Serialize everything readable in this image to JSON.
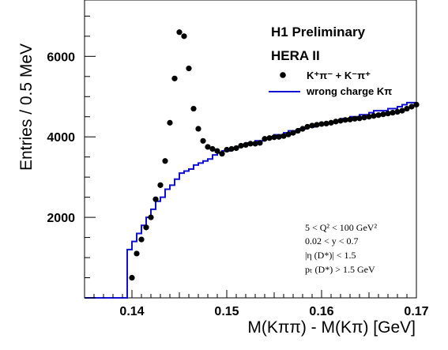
{
  "chart_data": {
    "type": "scatter",
    "title": "",
    "xlabel": "M(Kππ) - M(Kπ) [GeV]",
    "ylabel": "Entries / 0.5 MeV",
    "xlim": [
      0.135,
      0.17
    ],
    "ylim": [
      0,
      7400
    ],
    "x_ticks": [
      0.14,
      0.15,
      0.16,
      0.17
    ],
    "x_tick_labels": [
      "0.14",
      "0.15",
      "0.16",
      "0.17"
    ],
    "y_ticks": [
      2000,
      4000,
      6000
    ],
    "y_tick_labels": [
      "2000",
      "4000",
      "6000"
    ],
    "grid": false,
    "legend_position": "upper-right",
    "annotations": {
      "experiment": "H1 Preliminary",
      "accelerator": "HERA II"
    },
    "cuts": [
      "5 < Q² < 100 GeV²",
      "0.02 < y < 0.7",
      "|η (D*)| < 1.5",
      "pₜ (D*) > 1.5 GeV"
    ],
    "series": [
      {
        "name": "K⁺π⁻ + K⁻π⁺",
        "kind": "points",
        "color": "#000000",
        "x": [
          0.14,
          0.1405,
          0.141,
          0.1415,
          0.142,
          0.1425,
          0.143,
          0.1435,
          0.144,
          0.1445,
          0.145,
          0.1455,
          0.146,
          0.1465,
          0.147,
          0.1475,
          0.148,
          0.1485,
          0.149,
          0.1495,
          0.15,
          0.1505,
          0.151,
          0.1515,
          0.152,
          0.1525,
          0.153,
          0.1535,
          0.154,
          0.1545,
          0.155,
          0.1555,
          0.156,
          0.1565,
          0.157,
          0.1575,
          0.158,
          0.1585,
          0.159,
          0.1595,
          0.16,
          0.1605,
          0.161,
          0.1615,
          0.162,
          0.1625,
          0.163,
          0.1635,
          0.164,
          0.1645,
          0.165,
          0.1655,
          0.166,
          0.1665,
          0.167,
          0.1675,
          0.168,
          0.1685,
          0.169,
          0.1695,
          0.17
        ],
        "y": [
          500,
          1100,
          1450,
          1750,
          2000,
          2450,
          2800,
          3400,
          4350,
          5450,
          6600,
          6500,
          5700,
          4700,
          4200,
          3900,
          3750,
          3700,
          3650,
          3580,
          3680,
          3700,
          3720,
          3780,
          3800,
          3830,
          3830,
          3850,
          3950,
          3970,
          3990,
          4000,
          4020,
          4060,
          4100,
          4150,
          4200,
          4250,
          4280,
          4300,
          4320,
          4330,
          4350,
          4380,
          4400,
          4420,
          4430,
          4450,
          4460,
          4480,
          4500,
          4520,
          4540,
          4560,
          4580,
          4600,
          4620,
          4650,
          4700,
          4750,
          4800
        ]
      },
      {
        "name": "wrong charge Kπ",
        "kind": "step",
        "color": "#1010d0",
        "x": [
          0.1395,
          0.14,
          0.1405,
          0.141,
          0.1415,
          0.142,
          0.1425,
          0.143,
          0.1435,
          0.144,
          0.1445,
          0.145,
          0.1455,
          0.146,
          0.1465,
          0.147,
          0.1475,
          0.148,
          0.1485,
          0.149,
          0.1495,
          0.15,
          0.1505,
          0.151,
          0.1515,
          0.152,
          0.1525,
          0.153,
          0.1535,
          0.154,
          0.1545,
          0.155,
          0.1555,
          0.156,
          0.1565,
          0.157,
          0.1575,
          0.158,
          0.1585,
          0.159,
          0.1595,
          0.16,
          0.1605,
          0.161,
          0.1615,
          0.162,
          0.1625,
          0.163,
          0.1635,
          0.164,
          0.1645,
          0.165,
          0.1655,
          0.166,
          0.1665,
          0.167,
          0.1675,
          0.168,
          0.1685,
          0.169,
          0.1695
        ],
        "y": [
          1200,
          1400,
          1600,
          1800,
          2000,
          2200,
          2400,
          2500,
          2700,
          2800,
          2950,
          3100,
          3150,
          3200,
          3300,
          3350,
          3400,
          3450,
          3550,
          3600,
          3650,
          3650,
          3700,
          3750,
          3800,
          3850,
          3850,
          3900,
          3900,
          3950,
          4000,
          4050,
          4050,
          4100,
          4150,
          4150,
          4200,
          4200,
          4250,
          4250,
          4300,
          4300,
          4350,
          4350,
          4400,
          4450,
          4450,
          4500,
          4500,
          4550,
          4550,
          4600,
          4650,
          4650,
          4650,
          4700,
          4700,
          4750,
          4800,
          4850,
          4850
        ]
      }
    ]
  }
}
